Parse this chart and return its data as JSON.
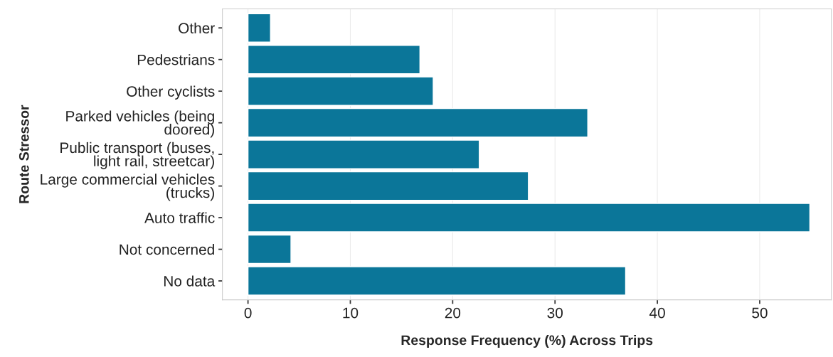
{
  "chart_data": {
    "type": "bar",
    "orientation": "horizontal",
    "xlabel": "Response Frequency (%) Across Trips",
    "ylabel": "Route Stressor",
    "categories": [
      "Other",
      "Pedestrians",
      "Other cyclists",
      "Parked vehicles (being\ndoored)",
      "Public transport (buses,\nlight rail, streetcar)",
      "Large commercial vehicles\n(trucks)",
      "Auto traffic",
      "Not concerned",
      "No data"
    ],
    "values": [
      2.2,
      16.8,
      18.1,
      33.2,
      22.6,
      27.4,
      54.9,
      4.2,
      36.9
    ],
    "color": "#0b7699",
    "xlim": [
      -2.5,
      57
    ],
    "xticks": [
      0,
      10,
      20,
      30,
      40,
      50
    ],
    "grid": true,
    "legend": false
  }
}
